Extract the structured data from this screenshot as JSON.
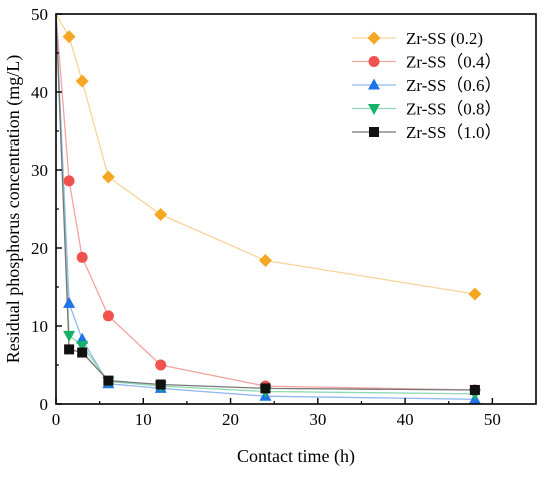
{
  "chart_data": {
    "type": "line",
    "xlabel": "Contact time (h)",
    "ylabel": "Residual phosphorus concentration (mg/L)",
    "xlim": [
      0,
      55
    ],
    "ylim": [
      0,
      50
    ],
    "x_ticks": [
      0,
      10,
      20,
      30,
      40,
      50
    ],
    "y_ticks": [
      0,
      10,
      20,
      30,
      40,
      50
    ],
    "legend_position": "top-right",
    "series": [
      {
        "name": "Zr-SS (0.2)",
        "color": "#F5A623",
        "line_color": "#F8D49A",
        "marker": "diamond",
        "x": [
          0,
          1.5,
          3,
          6,
          12,
          24,
          48
        ],
        "y": [
          50,
          47.1,
          41.4,
          29.1,
          24.3,
          18.4,
          14.1
        ]
      },
      {
        "name": "Zr-SS（0.4）",
        "color": "#F0524E",
        "line_color": "#F5A3A0",
        "marker": "circle",
        "x": [
          0,
          1.5,
          3,
          6,
          12,
          24,
          48
        ],
        "y": [
          50,
          28.6,
          18.8,
          11.3,
          5.0,
          2.3,
          1.8
        ]
      },
      {
        "name": "Zr-SS（0.6）",
        "color": "#1E73E6",
        "line_color": "#8FB8F0",
        "marker": "triangle-up",
        "x": [
          0,
          1.5,
          3,
          6,
          12,
          24,
          48
        ],
        "y": [
          50,
          12.9,
          8.3,
          2.6,
          2.0,
          1.0,
          0.6
        ]
      },
      {
        "name": "Zr-SS（0.8）",
        "color": "#17B26A",
        "line_color": "#8FD9B4",
        "marker": "triangle-down",
        "x": [
          0,
          1.5,
          3,
          6,
          12,
          24,
          48
        ],
        "y": [
          50,
          8.8,
          7.5,
          2.9,
          2.3,
          1.6,
          1.3
        ]
      },
      {
        "name": "Zr-SS（1.0）",
        "color": "#111111",
        "line_color": "#777777",
        "marker": "square",
        "x": [
          0,
          1.5,
          3,
          6,
          12,
          24,
          48
        ],
        "y": [
          50,
          7.0,
          6.6,
          3.0,
          2.5,
          2.0,
          1.8
        ]
      }
    ]
  }
}
